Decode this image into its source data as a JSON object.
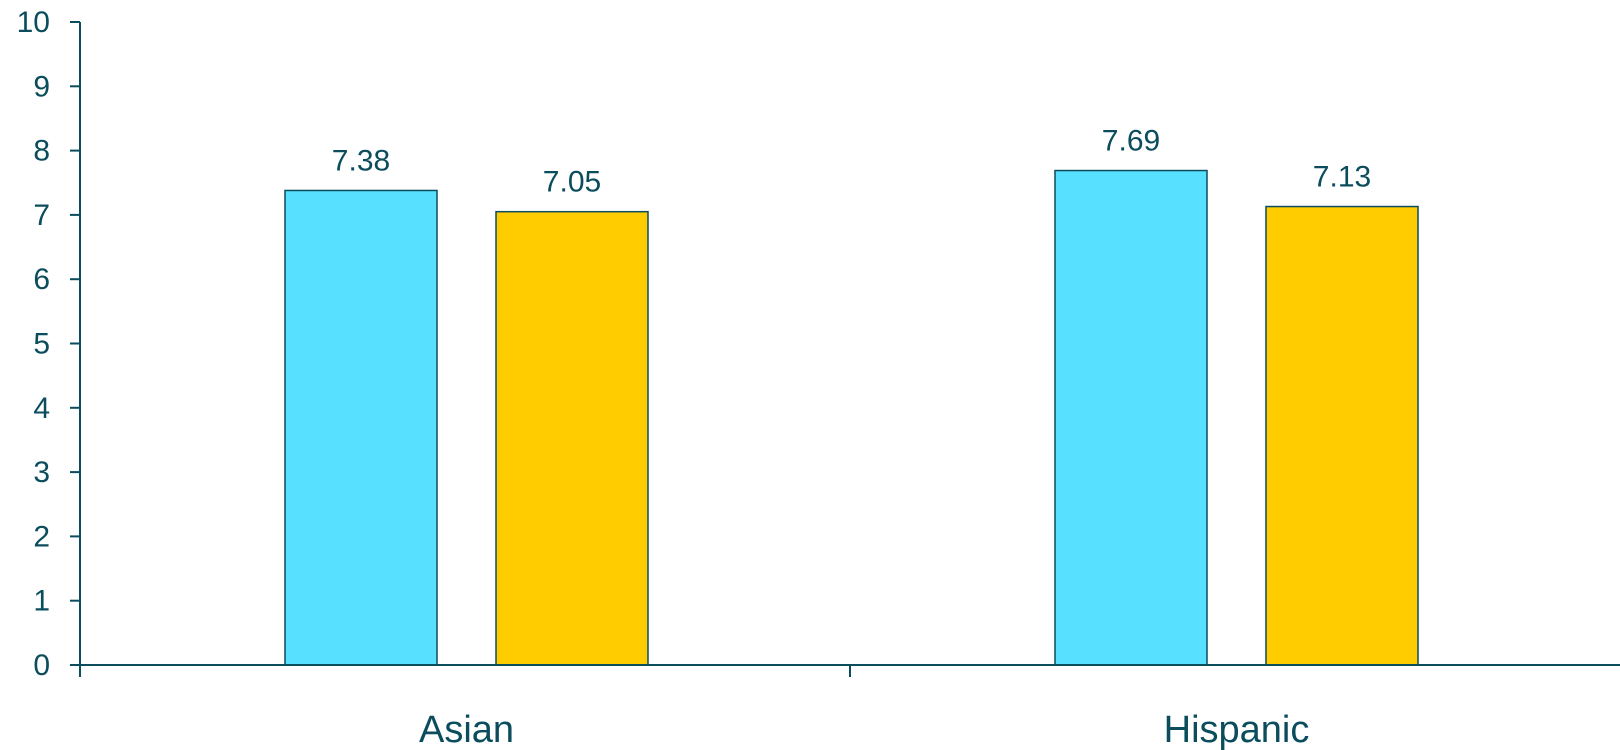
{
  "chart_data": {
    "type": "bar",
    "categories": [
      "Asian",
      "Hispanic"
    ],
    "series": [
      {
        "values": [
          7.38,
          7.69
        ],
        "color": "#57e0ff"
      },
      {
        "values": [
          7.05,
          7.13
        ],
        "color": "#ffcc00"
      }
    ],
    "data_labels": [
      [
        "7.38",
        "7.69"
      ],
      [
        "7.05",
        "7.13"
      ]
    ],
    "y_ticks": [
      "0",
      "1",
      "2",
      "3",
      "4",
      "5",
      "6",
      "7",
      "8",
      "9",
      "10"
    ],
    "ylim": [
      0,
      10
    ],
    "grid": false,
    "legend": "none",
    "title": "",
    "xlabel": "",
    "ylabel": ""
  }
}
